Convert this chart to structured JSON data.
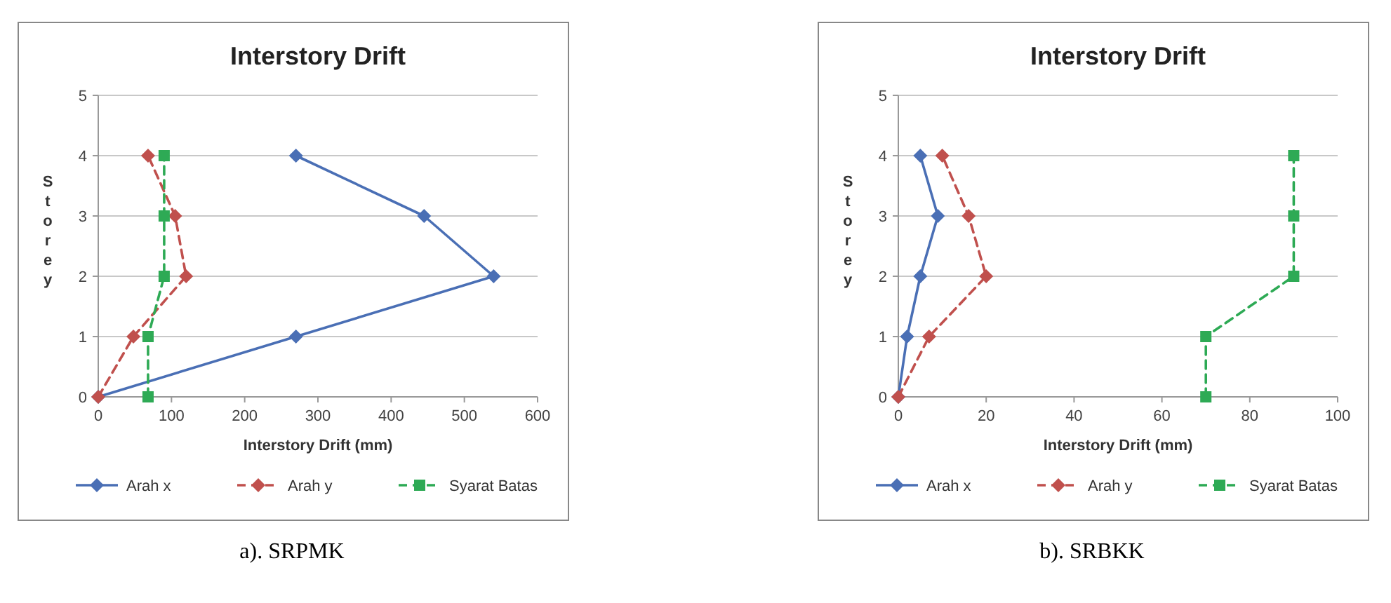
{
  "chart_data": [
    {
      "type": "line",
      "title": "Interstory Drift",
      "xlabel": "Interstory Drift (mm)",
      "ylabel": "Storey",
      "xlim": [
        0,
        600
      ],
      "xticks": [
        0,
        100,
        200,
        300,
        400,
        500,
        600
      ],
      "ylim": [
        0,
        5
      ],
      "yticks": [
        0,
        1,
        2,
        3,
        4,
        5
      ],
      "grid": "y",
      "legend": "bottom",
      "annotations": [
        "a). SRPMK"
      ],
      "series": [
        {
          "name": "Arah x",
          "color": "#4a6fb5",
          "x": [
            0,
            270,
            540,
            445,
            270
          ],
          "values": [
            0,
            1,
            2,
            3,
            4
          ],
          "marker": "diamond",
          "line_style": "solid"
        },
        {
          "name": "Arah y",
          "color": "#c0504d",
          "x": [
            0,
            48,
            120,
            105,
            68
          ],
          "values": [
            0,
            1,
            2,
            3,
            4
          ],
          "marker": "diamond",
          "line_style": "dashed"
        },
        {
          "name": "Syarat Batas",
          "color": "#2eaa55",
          "x": [
            68,
            68,
            90,
            90,
            90
          ],
          "values": [
            0,
            1,
            2,
            3,
            4
          ],
          "marker": "square",
          "line_style": "dashed"
        }
      ]
    },
    {
      "type": "line",
      "title": "Interstory Drift",
      "xlabel": "Interstory Drift (mm)",
      "ylabel": "Storey",
      "xlim": [
        0,
        100
      ],
      "xticks": [
        0,
        20,
        40,
        60,
        80,
        100
      ],
      "ylim": [
        0,
        5
      ],
      "yticks": [
        0,
        1,
        2,
        3,
        4,
        5
      ],
      "grid": "y",
      "legend": "bottom",
      "annotations": [
        "b). SRBKK"
      ],
      "series": [
        {
          "name": "Arah x",
          "color": "#4a6fb5",
          "x": [
            0,
            2,
            5,
            9,
            5
          ],
          "values": [
            0,
            1,
            2,
            3,
            4
          ],
          "marker": "diamond",
          "line_style": "solid"
        },
        {
          "name": "Arah y",
          "color": "#c0504d",
          "x": [
            0,
            7,
            20,
            16,
            10
          ],
          "values": [
            0,
            1,
            2,
            3,
            4
          ],
          "marker": "diamond",
          "line_style": "dashed"
        },
        {
          "name": "Syarat Batas",
          "color": "#2eaa55",
          "x": [
            70,
            70,
            90,
            90,
            90
          ],
          "values": [
            0,
            1,
            2,
            3,
            4
          ],
          "marker": "square",
          "line_style": "dashed"
        }
      ]
    }
  ]
}
